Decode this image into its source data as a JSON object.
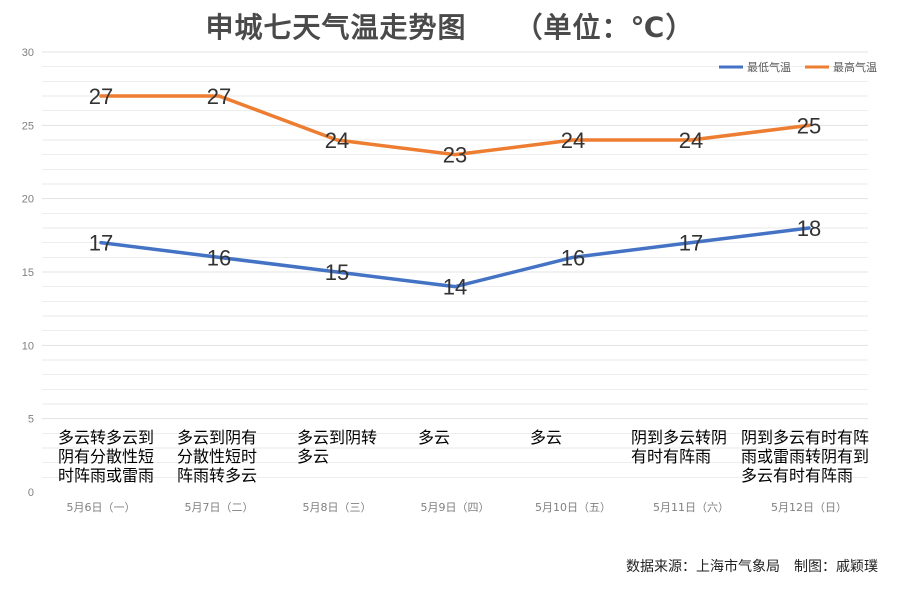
{
  "title": "申城七天气温走势图",
  "unit_label": "（单位：℃）",
  "source": {
    "source_label": "数据来源：上海市气象局",
    "credit_label": "制图：戚颖璞"
  },
  "colors": {
    "low_series": "#4472c4",
    "high_series": "#ed7d31",
    "grid": "#e3e3e3",
    "axis_text": "#7f7f7f",
    "data_label": "#333333"
  },
  "chart_data": {
    "type": "line",
    "title": "申城七天气温走势图",
    "unit": "℃",
    "categories": [
      "5月6日（一）",
      "5月7日（二）",
      "5月8日（三）",
      "5月9日（四）",
      "5月10日（五）",
      "5月11日（六）",
      "5月12日（日）"
    ],
    "series": [
      {
        "name": "最低气温",
        "color": "#4472c4",
        "values": [
          17,
          16,
          15,
          14,
          16,
          17,
          18
        ]
      },
      {
        "name": "最高气温",
        "color": "#ed7d31",
        "values": [
          27,
          27,
          24,
          23,
          24,
          24,
          25
        ]
      }
    ],
    "weather": [
      [
        "多云转多云到",
        "阴有分散性短",
        "时阵雨或雷雨"
      ],
      [
        "多云到阴有",
        "分散性短时",
        "阵雨转多云"
      ],
      [
        "多云到阴转",
        "多云"
      ],
      [
        "多云"
      ],
      [
        "多云"
      ],
      [
        "阴到多云转阴",
        "有时有阵雨"
      ],
      [
        "阴到多云有时有阵",
        "雨或雷雨转阴有到",
        "多云有时有阵雨"
      ]
    ],
    "yticks": [
      0,
      5,
      10,
      15,
      20,
      25,
      30
    ],
    "ylim": [
      0,
      30
    ],
    "grid": true,
    "legend_position": "top-right"
  }
}
